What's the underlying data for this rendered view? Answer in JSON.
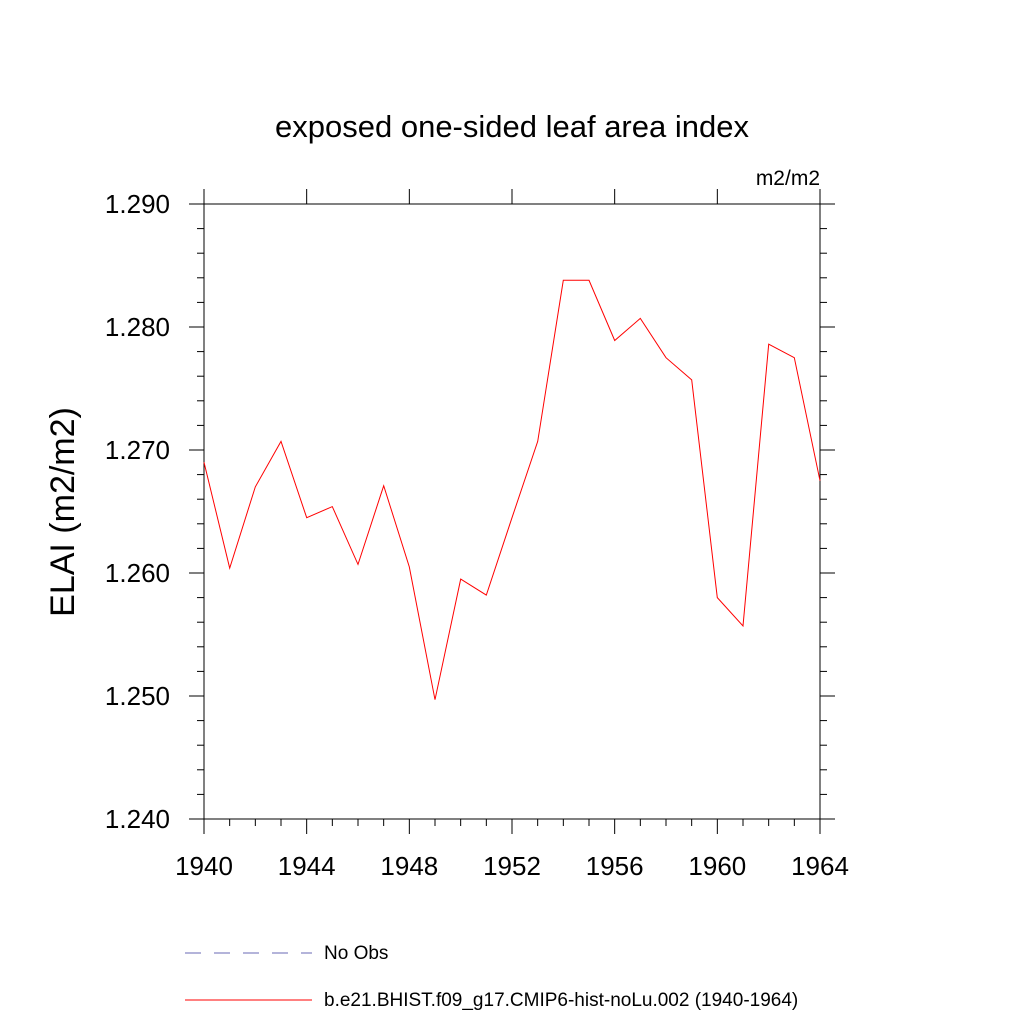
{
  "chart_data": {
    "type": "line",
    "title": "exposed one-sided leaf area index",
    "units_label": "m2/m2",
    "ylabel": "ELAI  (m2/m2)",
    "xlabel": "",
    "xlim": [
      1940,
      1964
    ],
    "ylim": [
      1.24,
      1.29
    ],
    "x_ticks": [
      1940,
      1944,
      1948,
      1952,
      1956,
      1960,
      1964
    ],
    "x_tick_labels": [
      "1940",
      "1944",
      "1948",
      "1952",
      "1956",
      "1960",
      "1964"
    ],
    "y_ticks": [
      1.24,
      1.25,
      1.26,
      1.27,
      1.28,
      1.29
    ],
    "y_tick_labels": [
      "1.240",
      "1.250",
      "1.260",
      "1.270",
      "1.280",
      "1.290"
    ],
    "grid": false,
    "legend_placement": "bottom",
    "series": [
      {
        "name": "b.e21.BHIST.f09_g17.CMIP6-hist-noLu.002 (1940-1964)",
        "color": "#ff0000",
        "style": "solid",
        "x": [
          1940,
          1941,
          1942,
          1943,
          1944,
          1945,
          1946,
          1947,
          1948,
          1949,
          1950,
          1951,
          1952,
          1953,
          1954,
          1955,
          1956,
          1957,
          1958,
          1959,
          1960,
          1961,
          1962,
          1963,
          1964
        ],
        "y": [
          1.269,
          1.2604,
          1.267,
          1.2707,
          1.2645,
          1.2654,
          1.2607,
          1.2671,
          1.2605,
          1.2497,
          1.2595,
          1.2582,
          1.2645,
          1.2707,
          1.2838,
          1.2838,
          1.2789,
          1.2807,
          1.2775,
          1.2757,
          1.258,
          1.2557,
          1.2786,
          1.2775,
          1.2675
        ]
      }
    ],
    "legend": [
      {
        "label": "No Obs",
        "color": "#6a6ab4",
        "style": "dashed"
      },
      {
        "label": "b.e21.BHIST.f09_g17.CMIP6-hist-noLu.002 (1940-1964)",
        "color": "#ff0000",
        "style": "solid"
      }
    ]
  }
}
